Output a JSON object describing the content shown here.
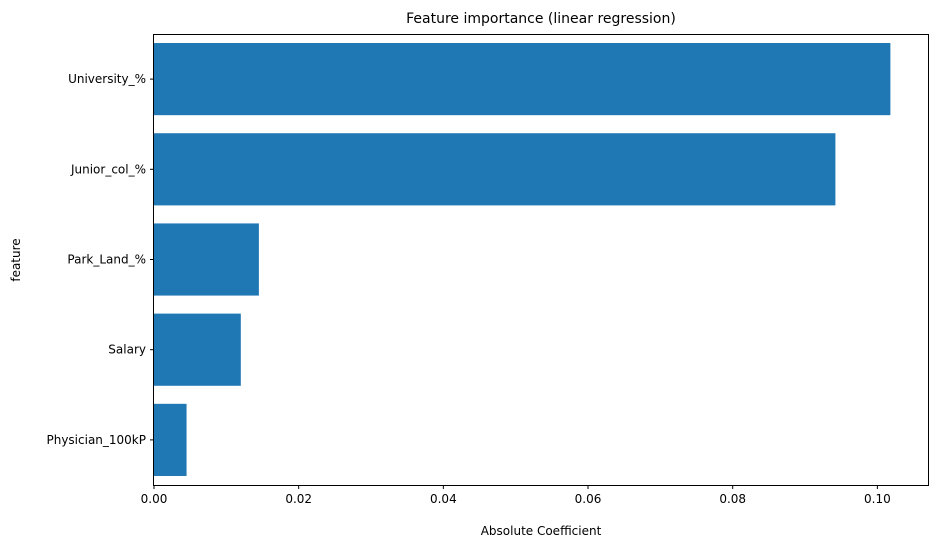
{
  "chart_data": {
    "type": "bar",
    "orientation": "horizontal",
    "title": "Feature importance (linear regression)",
    "xlabel": "Absolute Coefficient",
    "ylabel": "feature",
    "categories": [
      "University_%",
      "Junior_col_%",
      "Park_Land_%",
      "Salary",
      "Physician_100kP"
    ],
    "values": [
      0.1018,
      0.0942,
      0.0145,
      0.012,
      0.0045
    ],
    "xlim": [
      0,
      0.107
    ],
    "xticks": [
      0,
      0.02,
      0.04,
      0.06,
      0.08,
      0.1
    ],
    "xtick_labels": [
      "0.00",
      "0.02",
      "0.04",
      "0.06",
      "0.08",
      "0.10"
    ],
    "bar_color": "#1f77b4",
    "grid": false,
    "legend": "none"
  }
}
